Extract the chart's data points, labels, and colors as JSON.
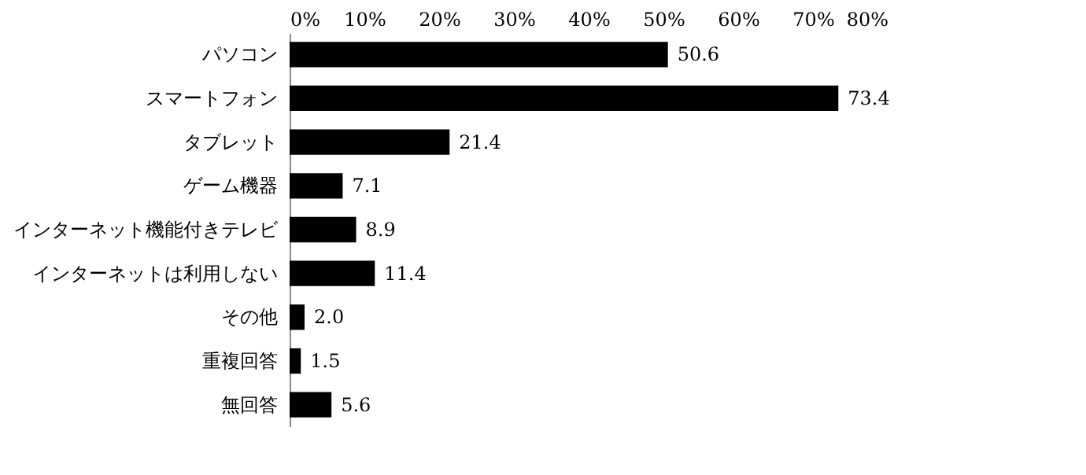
{
  "chart_data": {
    "type": "bar",
    "orientation": "horizontal",
    "categories": [
      "パソコン",
      "スマートフォン",
      "タブレット",
      "ゲーム機器",
      "インターネット機能付きテレビ",
      "インターネットは利用しない",
      "その他",
      "重複回答",
      "無回答"
    ],
    "values": [
      50.6,
      73.4,
      21.4,
      7.1,
      8.9,
      11.4,
      2.0,
      1.5,
      5.6
    ],
    "value_labels": [
      "50.6",
      "73.4",
      "21.4",
      "7.1",
      "8.9",
      "11.4",
      "2.0",
      "1.5",
      "5.6"
    ],
    "color": "#000000",
    "xlim": [
      0,
      80
    ],
    "xticks": [
      {
        "value": 0,
        "label": "0%"
      },
      {
        "value": 10,
        "label": "10%"
      },
      {
        "value": 20,
        "label": "20%"
      },
      {
        "value": 30,
        "label": "30%"
      },
      {
        "value": 40,
        "label": "40%"
      },
      {
        "value": 50,
        "label": "50%"
      },
      {
        "value": 60,
        "label": "60%"
      },
      {
        "value": 70,
        "label": "70%"
      },
      {
        "value": 80,
        "label": "80%"
      }
    ],
    "grid": false
  }
}
